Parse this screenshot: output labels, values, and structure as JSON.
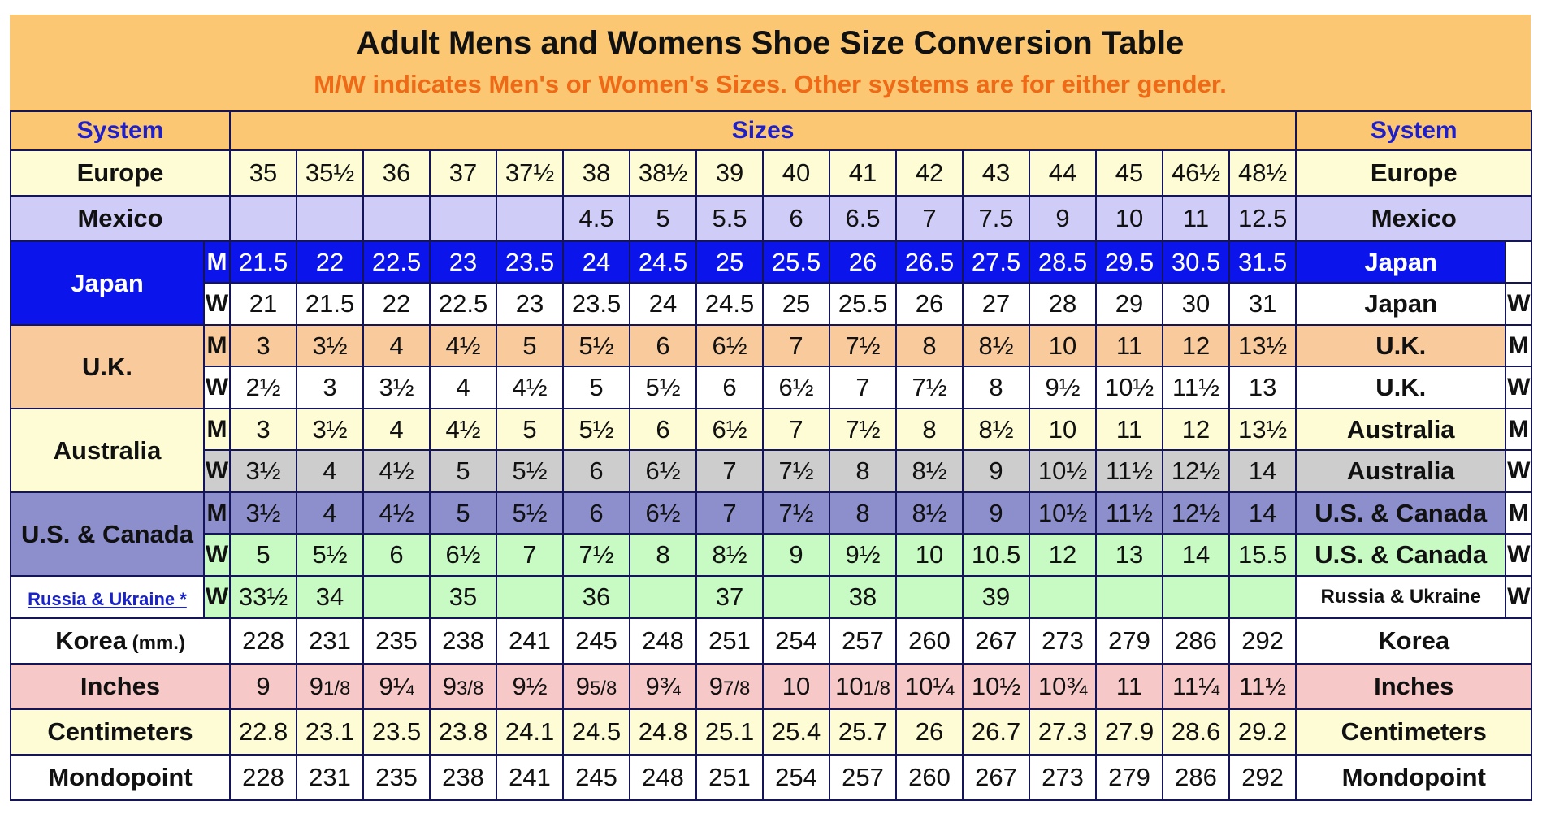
{
  "title": "Adult Mens and Womens Shoe Size Conversion Table",
  "subtitle": "M/W indicates Men's or Women's Sizes. Other systems are for either gender.",
  "headers": {
    "system_left": "System",
    "sizes": "Sizes",
    "system_right": "System"
  },
  "labels": {
    "europe": "Europe",
    "mexico": "Mexico",
    "japan": "Japan",
    "uk": "U.K.",
    "australia": "Australia",
    "us_canada": "U.S. & Canada",
    "russia_ukraine_link": "Russia & Ukraine *",
    "russia_ukraine": "Russia & Ukraine",
    "korea": "Korea",
    "korea_unit": " (mm.)",
    "inches": "Inches",
    "centimeters": "Centimeters",
    "mondopoint": "Mondopoint",
    "m": "M",
    "w": "W"
  },
  "rows": {
    "europe": [
      "35",
      "35½",
      "36",
      "37",
      "37½",
      "38",
      "38½",
      "39",
      "40",
      "41",
      "42",
      "43",
      "44",
      "45",
      "46½",
      "48½"
    ],
    "mexico": [
      "",
      "",
      "",
      "",
      "",
      "4.5",
      "5",
      "5.5",
      "6",
      "6.5",
      "7",
      "7.5",
      "9",
      "10",
      "11",
      "12.5"
    ],
    "japan_m": [
      "21.5",
      "22",
      "22.5",
      "23",
      "23.5",
      "24",
      "24.5",
      "25",
      "25.5",
      "26",
      "26.5",
      "27.5",
      "28.5",
      "29.5",
      "30.5",
      "31.5"
    ],
    "japan_w": [
      "21",
      "21.5",
      "22",
      "22.5",
      "23",
      "23.5",
      "24",
      "24.5",
      "25",
      "25.5",
      "26",
      "27",
      "28",
      "29",
      "30",
      "31"
    ],
    "uk_m": [
      "3",
      "3½",
      "4",
      "4½",
      "5",
      "5½",
      "6",
      "6½",
      "7",
      "7½",
      "8",
      "8½",
      "10",
      "11",
      "12",
      "13½"
    ],
    "uk_w": [
      "2½",
      "3",
      "3½",
      "4",
      "4½",
      "5",
      "5½",
      "6",
      "6½",
      "7",
      "7½",
      "8",
      "9½",
      "10½",
      "11½",
      "13"
    ],
    "au_m": [
      "3",
      "3½",
      "4",
      "4½",
      "5",
      "5½",
      "6",
      "6½",
      "7",
      "7½",
      "8",
      "8½",
      "10",
      "11",
      "12",
      "13½"
    ],
    "au_w": [
      "3½",
      "4",
      "4½",
      "5",
      "5½",
      "6",
      "6½",
      "7",
      "7½",
      "8",
      "8½",
      "9",
      "10½",
      "11½",
      "12½",
      "14"
    ],
    "us_m": [
      "3½",
      "4",
      "4½",
      "5",
      "5½",
      "6",
      "6½",
      "7",
      "7½",
      "8",
      "8½",
      "9",
      "10½",
      "11½",
      "12½",
      "14"
    ],
    "us_w": [
      "5",
      "5½",
      "6",
      "6½",
      "7",
      "7½",
      "8",
      "8½",
      "9",
      "9½",
      "10",
      "10.5",
      "12",
      "13",
      "14",
      "15.5"
    ],
    "russia": [
      "33½",
      "34",
      "",
      "35",
      "",
      "36",
      "",
      "37",
      "",
      "38",
      "",
      "39",
      "",
      "",
      "",
      ""
    ],
    "korea": [
      "228",
      "231",
      "235",
      "238",
      "241",
      "245",
      "248",
      "251",
      "254",
      "257",
      "260",
      "267",
      "273",
      "279",
      "286",
      "292"
    ],
    "inches": [
      {
        "w": "9",
        "f": ""
      },
      {
        "w": "9",
        "f": "1/8"
      },
      {
        "w": "9¼",
        "f": ""
      },
      {
        "w": "9",
        "f": "3/8"
      },
      {
        "w": "9½",
        "f": ""
      },
      {
        "w": "9",
        "f": "5/8"
      },
      {
        "w": "9¾",
        "f": ""
      },
      {
        "w": "9",
        "f": "7/8"
      },
      {
        "w": "10",
        "f": ""
      },
      {
        "w": "10",
        "f": "1/8"
      },
      {
        "w": "10¼",
        "f": ""
      },
      {
        "w": "10½",
        "f": ""
      },
      {
        "w": "10¾",
        "f": ""
      },
      {
        "w": "11",
        "f": ""
      },
      {
        "w": "11¼",
        "f": ""
      },
      {
        "w": "11½",
        "f": ""
      }
    ],
    "centimeters": [
      "22.8",
      "23.1",
      "23.5",
      "23.8",
      "24.1",
      "24.5",
      "24.8",
      "25.1",
      "25.4",
      "25.7",
      "26",
      "26.7",
      "27.3",
      "27.9",
      "28.6",
      "29.2"
    ],
    "mondopoint": [
      "228",
      "231",
      "235",
      "238",
      "241",
      "245",
      "248",
      "251",
      "254",
      "257",
      "260",
      "267",
      "273",
      "279",
      "286",
      "292"
    ]
  }
}
